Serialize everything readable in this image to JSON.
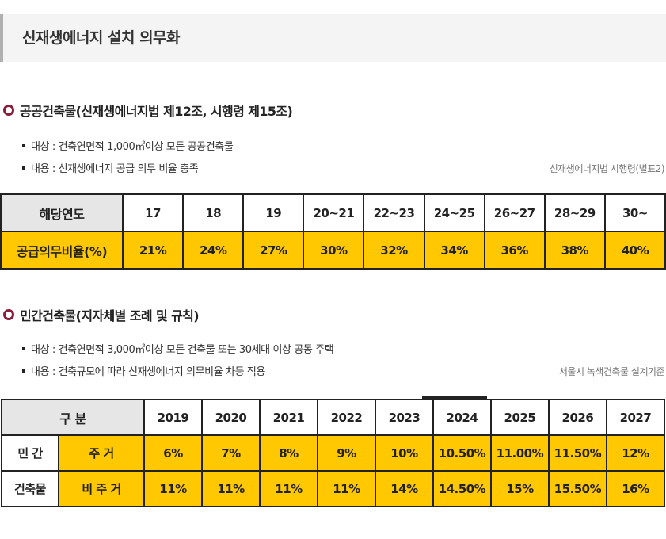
{
  "title": "신재생에너지 설치 의무화",
  "public": {
    "heading": "공공건축물(신재생에너지법 제12조, 시행령 제15조)",
    "target": "대상 : 건축연면적 1,000㎡이상 모든 공공건축물",
    "content": "내용 : 신재생에너지 공급 의무 비율 충족",
    "reference": "신재생에너지법 시행령(별표2)",
    "table": {
      "header_label": "해당연도",
      "years": [
        "17",
        "18",
        "19",
        "20~21",
        "22~23",
        "24~25",
        "26~27",
        "28~29",
        "30~"
      ],
      "row_label": "공급의무비율(%)",
      "values": [
        "21%",
        "24%",
        "27%",
        "30%",
        "32%",
        "34%",
        "36%",
        "38%",
        "40%"
      ]
    }
  },
  "private": {
    "heading": "민간건축물(지자체별 조례 및 규칙)",
    "target": "대상 : 건축연면적 3,000㎡이상 모든 건축물 또는 30세대 이상 공동 주택",
    "content": "내용 : 건축규모에 따라 신재생에너지 의무비율 차등 적용",
    "reference": "서울시 녹색건축물 설계기준",
    "table": {
      "header_label": "구 분",
      "years": [
        "2019",
        "2020",
        "2021",
        "2022",
        "2023",
        "2024",
        "2025",
        "2026",
        "2027"
      ],
      "group_label_1": "민 간",
      "group_label_2": "건축물",
      "rows": [
        {
          "label": "주 거",
          "values": [
            "6%",
            "7%",
            "8%",
            "9%",
            "10%",
            "10.50%",
            "11.00%",
            "11.50%",
            "12%"
          ]
        },
        {
          "label": "비 주 거",
          "values": [
            "11%",
            "11%",
            "11%",
            "11%",
            "14%",
            "14.50%",
            "15%",
            "15.50%",
            "16%"
          ]
        }
      ]
    }
  }
}
